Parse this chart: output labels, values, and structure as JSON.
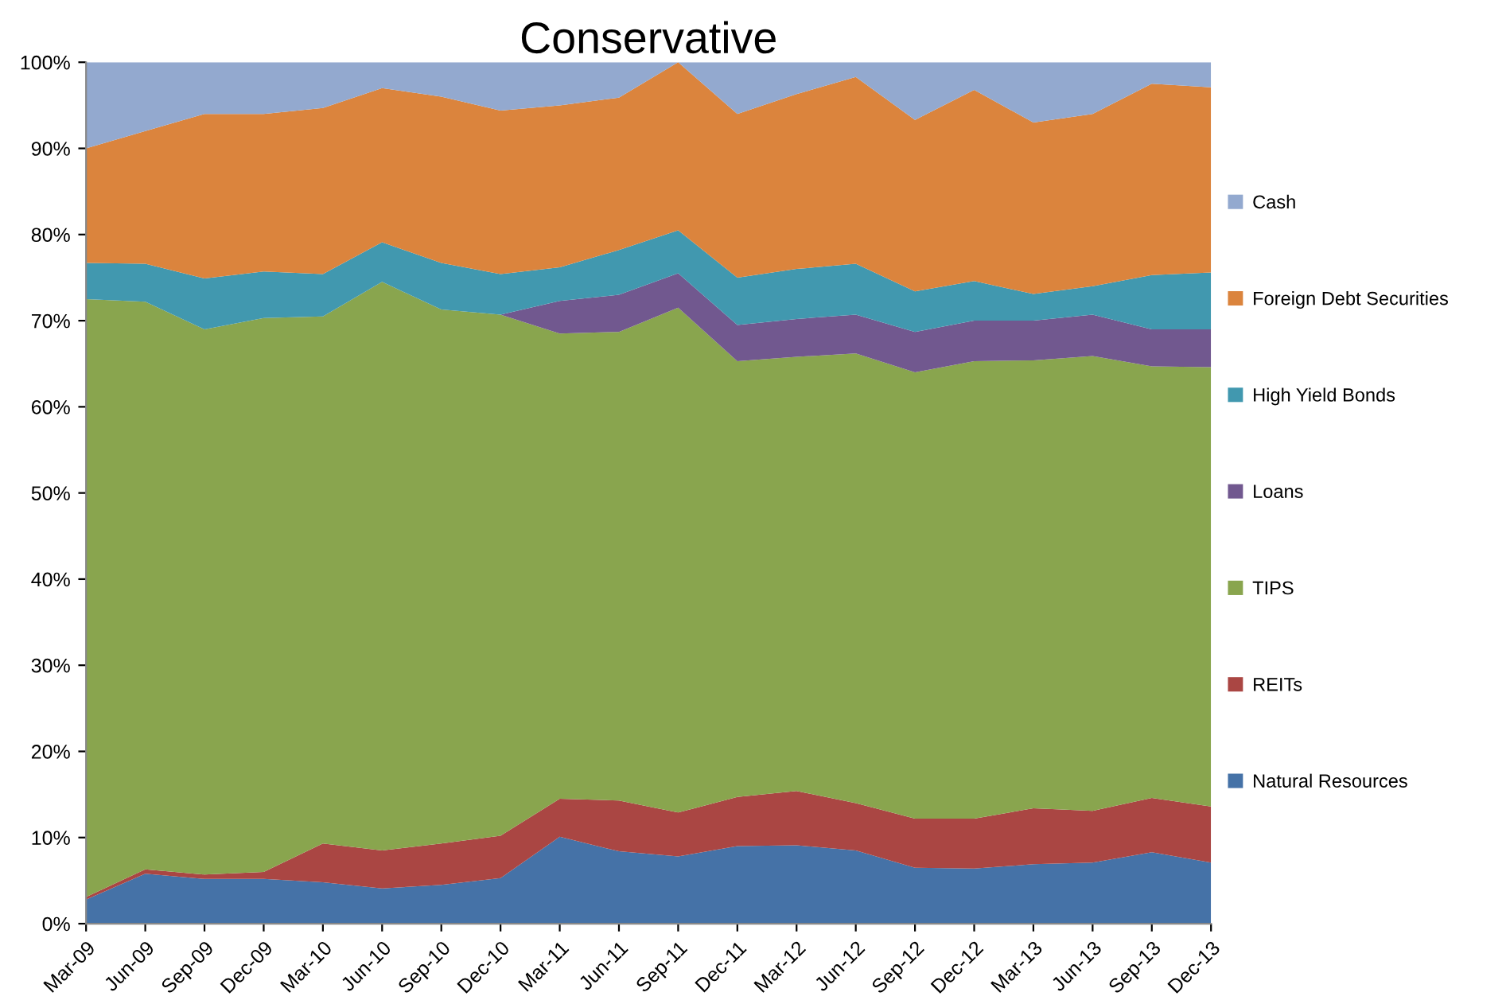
{
  "chart_data": {
    "type": "area",
    "title": "Conservative",
    "stacked": true,
    "categories": [
      "Mar-09",
      "Jun-09",
      "Sep-09",
      "Dec-09",
      "Mar-10",
      "Jun-10",
      "Sep-10",
      "Dec-10",
      "Mar-11",
      "Jun-11",
      "Sep-11",
      "Dec-11",
      "Mar-12",
      "Jun-12",
      "Sep-12",
      "Dec-12",
      "Mar-13",
      "Jun-13",
      "Sep-13",
      "Dec-13"
    ],
    "series": [
      {
        "name": "Natural Resources",
        "color": "#4572a7",
        "values": [
          2.8,
          5.8,
          5.2,
          5.2,
          4.8,
          4.1,
          4.5,
          5.3,
          10.1,
          8.4,
          7.8,
          9.0,
          9.1,
          8.5,
          6.5,
          6.4,
          6.9,
          7.1,
          8.3,
          7.1
        ]
      },
      {
        "name": "REITs",
        "color": "#aa4643",
        "values": [
          0.3,
          0.5,
          0.5,
          0.8,
          4.5,
          4.4,
          4.8,
          4.9,
          4.4,
          5.9,
          5.1,
          5.7,
          6.3,
          5.5,
          5.7,
          5.8,
          6.5,
          6.0,
          6.3,
          6.5
        ]
      },
      {
        "name": "TIPS",
        "color": "#89a54e",
        "values": [
          69.4,
          65.9,
          63.3,
          64.3,
          61.2,
          66.0,
          62.0,
          60.5,
          54.0,
          54.4,
          58.6,
          50.6,
          50.4,
          52.2,
          51.8,
          53.1,
          52.0,
          52.8,
          50.1,
          51.0
        ]
      },
      {
        "name": "Loans",
        "color": "#71588f",
        "values": [
          0,
          0,
          0,
          0,
          0,
          0,
          0,
          0,
          3.8,
          4.3,
          4.0,
          4.2,
          4.4,
          4.5,
          4.7,
          4.7,
          4.6,
          4.8,
          4.3,
          4.4
        ]
      },
      {
        "name": "High Yield Bonds",
        "color": "#4198af",
        "values": [
          4.2,
          4.4,
          5.9,
          5.4,
          4.9,
          4.6,
          5.4,
          4.7,
          3.9,
          5.2,
          5.0,
          5.5,
          5.8,
          5.9,
          4.7,
          4.6,
          3.1,
          3.3,
          6.3,
          6.6
        ]
      },
      {
        "name": "Foreign Debt Securities",
        "color": "#db843d",
        "values": [
          13.3,
          15.4,
          19.1,
          18.3,
          19.3,
          17.9,
          19.3,
          19.0,
          18.8,
          17.7,
          19.5,
          19.0,
          20.3,
          21.7,
          19.9,
          22.2,
          19.9,
          20.0,
          22.2,
          21.5
        ]
      },
      {
        "name": "Cash",
        "color": "#93a9cf",
        "values": [
          10.0,
          8.0,
          6.0,
          6.0,
          5.3,
          3.0,
          4.0,
          5.6,
          5.0,
          4.1,
          0,
          6.0,
          3.7,
          1.7,
          6.7,
          3.2,
          7.0,
          6.0,
          2.5,
          2.9
        ]
      }
    ],
    "ylim": [
      0,
      100
    ],
    "yticks": [
      {
        "value": 0,
        "label": "0%"
      },
      {
        "value": 10,
        "label": "10%"
      },
      {
        "value": 20,
        "label": "20%"
      },
      {
        "value": 30,
        "label": "30%"
      },
      {
        "value": 40,
        "label": "40%"
      },
      {
        "value": 50,
        "label": "50%"
      },
      {
        "value": 60,
        "label": "60%"
      },
      {
        "value": 70,
        "label": "70%"
      },
      {
        "value": 80,
        "label": "80%"
      },
      {
        "value": 90,
        "label": "90%"
      },
      {
        "value": 100,
        "label": "100%"
      }
    ],
    "grid": false,
    "legend": "right"
  }
}
